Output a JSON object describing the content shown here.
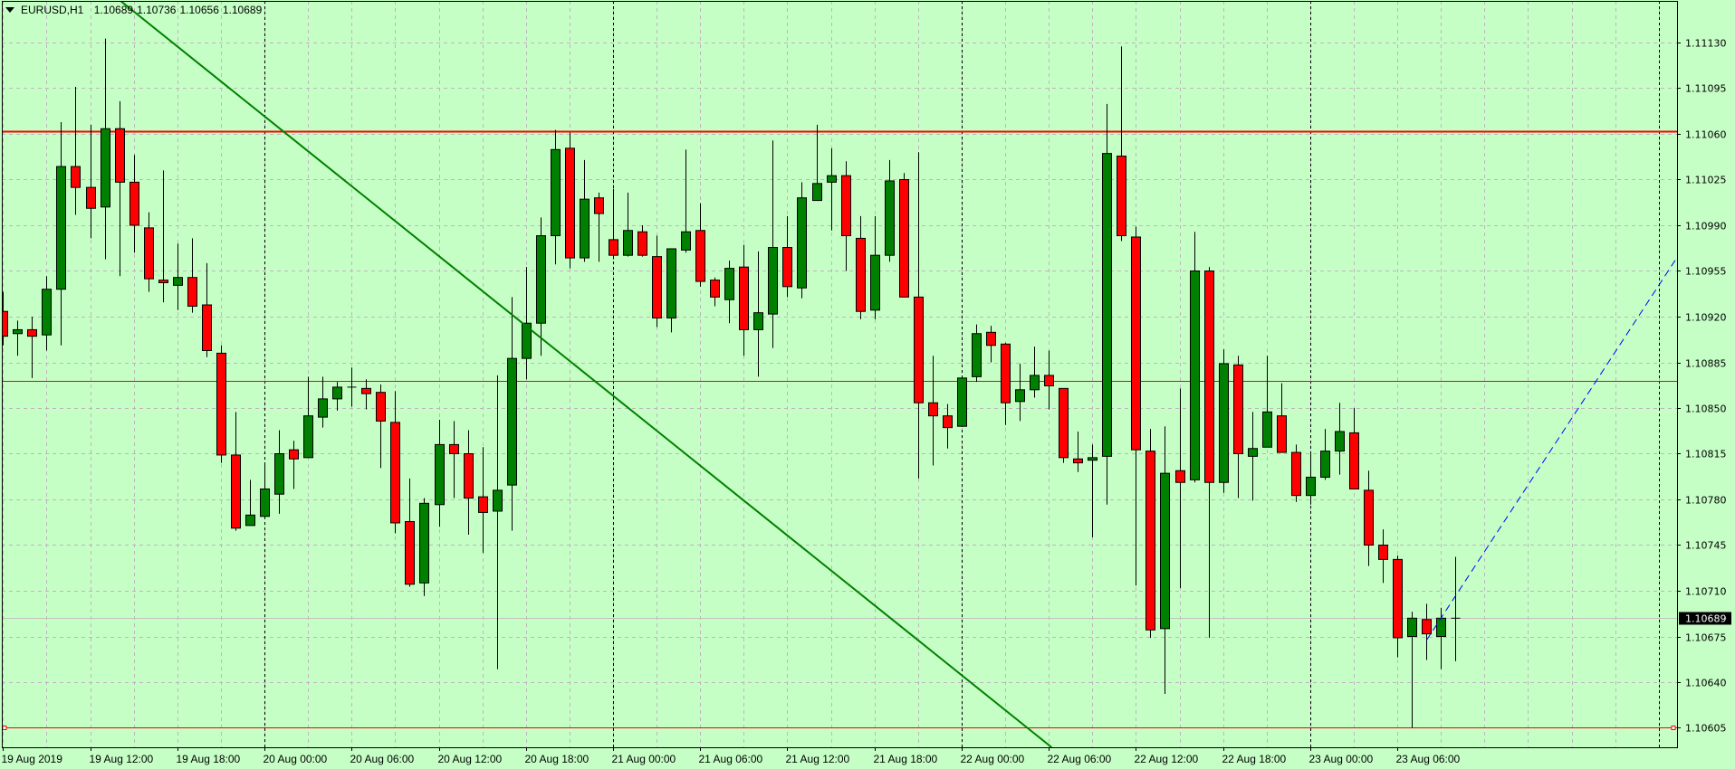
{
  "header": {
    "menu_icon": "triangle-down-icon",
    "symbol": "EURUSD,H1",
    "open": "1.10689",
    "high": "1.10736",
    "low": "1.10656",
    "close": "1.10689"
  },
  "colors": {
    "background": "#c6ffc6",
    "bull": "#008000",
    "bear": "#ff0000",
    "outline": "#000000",
    "grid": "#c0b4c0",
    "trend_green": "#008000",
    "trend_blue": "#0000ff",
    "level": "#ff0000",
    "bid_line": "#c0c0c0"
  },
  "chart_data": {
    "type": "candlestick",
    "symbol": "EURUSD",
    "timeframe": "H1",
    "ylim": [
      1.1059,
      1.11162
    ],
    "grid": true,
    "y_ticks": [
      "1.11130",
      "1.11095",
      "1.11060",
      "1.11025",
      "1.10990",
      "1.10955",
      "1.10920",
      "1.10885",
      "1.10850",
      "1.10815",
      "1.10780",
      "1.10745",
      "1.10710",
      "1.10675",
      "1.10640",
      "1.10605"
    ],
    "current_price": "1.10689",
    "x_ticks": [
      {
        "label": "19 Aug 2019",
        "time": "2019.08.19 06:00"
      },
      {
        "label": "19 Aug 12:00",
        "time": "2019.08.19 12:00"
      },
      {
        "label": "19 Aug 18:00",
        "time": "2019.08.19 18:00"
      },
      {
        "label": "20 Aug 00:00",
        "time": "2019.08.20 00:00"
      },
      {
        "label": "20 Aug 06:00",
        "time": "2019.08.20 06:00"
      },
      {
        "label": "20 Aug 12:00",
        "time": "2019.08.20 12:00"
      },
      {
        "label": "20 Aug 18:00",
        "time": "2019.08.20 18:00"
      },
      {
        "label": "21 Aug 00:00",
        "time": "2019.08.21 00:00"
      },
      {
        "label": "21 Aug 06:00",
        "time": "2019.08.21 06:00"
      },
      {
        "label": "21 Aug 12:00",
        "time": "2019.08.21 12:00"
      },
      {
        "label": "21 Aug 18:00",
        "time": "2019.08.21 18:00"
      },
      {
        "label": "22 Aug 00:00",
        "time": "2019.08.22 00:00"
      },
      {
        "label": "22 Aug 06:00",
        "time": "2019.08.22 06:00"
      },
      {
        "label": "22 Aug 12:00",
        "time": "2019.08.22 12:00"
      },
      {
        "label": "22 Aug 18:00",
        "time": "2019.08.22 18:00"
      },
      {
        "label": "23 Aug 00:00",
        "time": "2019.08.23 00:00"
      },
      {
        "label": "23 Aug 06:00",
        "time": "2019.08.23 06:00"
      }
    ],
    "horizontal_lines": [
      {
        "price": 1.11062,
        "style": "thick"
      },
      {
        "price": 1.10871,
        "style": "thin"
      },
      {
        "price": 1.10605,
        "style": "thin-marked",
        "label": "1.10605"
      }
    ],
    "trendlines": [
      {
        "color": "green",
        "p1": {
          "time": "2019.08.20 06:00",
          "price": 1.1102
        },
        "p2": {
          "time": "2019.08.21 07:00",
          "price": 1.10797
        },
        "style": "solid"
      },
      {
        "color": "blue",
        "p1": {
          "time": "2019.08.23 08:00",
          "price": 1.10672
        },
        "p2": {
          "time": "2019.08.23 10:00",
          "price": 1.10706
        },
        "style": "dashed-ray"
      }
    ],
    "bars": [
      {
        "t": "2019.08.19 06:00",
        "o": 1.10924,
        "h": 1.10939,
        "l": 1.10898,
        "c": 1.10905
      },
      {
        "t": "2019.08.19 07:00",
        "o": 1.10907,
        "h": 1.10917,
        "l": 1.1089,
        "c": 1.1091
      },
      {
        "t": "2019.08.19 08:00",
        "o": 1.1091,
        "h": 1.1092,
        "l": 1.10873,
        "c": 1.10905
      },
      {
        "t": "2019.08.19 09:00",
        "o": 1.10906,
        "h": 1.10951,
        "l": 1.10894,
        "c": 1.10941
      },
      {
        "t": "2019.08.19 10:00",
        "o": 1.10941,
        "h": 1.11069,
        "l": 1.10898,
        "c": 1.11035
      },
      {
        "t": "2019.08.19 11:00",
        "o": 1.11035,
        "h": 1.11096,
        "l": 1.10998,
        "c": 1.11019
      },
      {
        "t": "2019.08.19 12:00",
        "o": 1.11019,
        "h": 1.11067,
        "l": 1.1098,
        "c": 1.11003
      },
      {
        "t": "2019.08.19 13:00",
        "o": 1.11004,
        "h": 1.11133,
        "l": 1.10964,
        "c": 1.11064
      },
      {
        "t": "2019.08.19 14:00",
        "o": 1.11064,
        "h": 1.11085,
        "l": 1.10951,
        "c": 1.11023
      },
      {
        "t": "2019.08.19 15:00",
        "o": 1.11023,
        "h": 1.11044,
        "l": 1.10969,
        "c": 1.1099
      },
      {
        "t": "2019.08.19 16:00",
        "o": 1.10988,
        "h": 1.11,
        "l": 1.10939,
        "c": 1.10949
      },
      {
        "t": "2019.08.19 17:00",
        "o": 1.10948,
        "h": 1.11032,
        "l": 1.10931,
        "c": 1.10946
      },
      {
        "t": "2019.08.19 18:00",
        "o": 1.10944,
        "h": 1.10976,
        "l": 1.10925,
        "c": 1.1095
      },
      {
        "t": "2019.08.19 19:00",
        "o": 1.1095,
        "h": 1.1098,
        "l": 1.10923,
        "c": 1.10928
      },
      {
        "t": "2019.08.19 20:00",
        "o": 1.10929,
        "h": 1.10961,
        "l": 1.10889,
        "c": 1.10894
      },
      {
        "t": "2019.08.19 21:00",
        "o": 1.10892,
        "h": 1.10898,
        "l": 1.10808,
        "c": 1.10814
      },
      {
        "t": "2019.08.19 22:00",
        "o": 1.10814,
        "h": 1.10847,
        "l": 1.10756,
        "c": 1.10758
      },
      {
        "t": "2019.08.19 23:00",
        "o": 1.1076,
        "h": 1.10795,
        "l": 1.1076,
        "c": 1.10768
      },
      {
        "t": "2019.08.20 00:00",
        "o": 1.10767,
        "h": 1.10808,
        "l": 1.10767,
        "c": 1.10788
      },
      {
        "t": "2019.08.20 01:00",
        "o": 1.10784,
        "h": 1.10833,
        "l": 1.10769,
        "c": 1.10815
      },
      {
        "t": "2019.08.20 02:00",
        "o": 1.10818,
        "h": 1.10825,
        "l": 1.10788,
        "c": 1.10811
      },
      {
        "t": "2019.08.20 03:00",
        "o": 1.10812,
        "h": 1.10874,
        "l": 1.10812,
        "c": 1.10844
      },
      {
        "t": "2019.08.20 04:00",
        "o": 1.10843,
        "h": 1.10874,
        "l": 1.10835,
        "c": 1.10857
      },
      {
        "t": "2019.08.20 05:00",
        "o": 1.10857,
        "h": 1.1087,
        "l": 1.10848,
        "c": 1.10866
      },
      {
        "t": "2019.08.20 06:00",
        "o": 1.10866,
        "h": 1.10881,
        "l": 1.10851,
        "c": 1.10866
      },
      {
        "t": "2019.08.20 07:00",
        "o": 1.10865,
        "h": 1.10872,
        "l": 1.10849,
        "c": 1.10861
      },
      {
        "t": "2019.08.20 08:00",
        "o": 1.10862,
        "h": 1.10868,
        "l": 1.10804,
        "c": 1.1084
      },
      {
        "t": "2019.08.20 09:00",
        "o": 1.10839,
        "h": 1.10863,
        "l": 1.10754,
        "c": 1.10762
      },
      {
        "t": "2019.08.20 10:00",
        "o": 1.10763,
        "h": 1.10796,
        "l": 1.10713,
        "c": 1.10715
      },
      {
        "t": "2019.08.20 11:00",
        "o": 1.10716,
        "h": 1.10781,
        "l": 1.10706,
        "c": 1.10777
      },
      {
        "t": "2019.08.20 12:00",
        "o": 1.10776,
        "h": 1.10841,
        "l": 1.10759,
        "c": 1.10822
      },
      {
        "t": "2019.08.20 13:00",
        "o": 1.10822,
        "h": 1.1084,
        "l": 1.10781,
        "c": 1.10815
      },
      {
        "t": "2019.08.20 14:00",
        "o": 1.10815,
        "h": 1.10833,
        "l": 1.10753,
        "c": 1.10781
      },
      {
        "t": "2019.08.20 15:00",
        "o": 1.10782,
        "h": 1.1082,
        "l": 1.10739,
        "c": 1.1077
      },
      {
        "t": "2019.08.20 16:00",
        "o": 1.10771,
        "h": 1.10875,
        "l": 1.1065,
        "c": 1.10787
      },
      {
        "t": "2019.08.20 17:00",
        "o": 1.10791,
        "h": 1.10935,
        "l": 1.10756,
        "c": 1.10888
      },
      {
        "t": "2019.08.20 18:00",
        "o": 1.10888,
        "h": 1.10958,
        "l": 1.10872,
        "c": 1.10915
      },
      {
        "t": "2019.08.20 19:00",
        "o": 1.10915,
        "h": 1.10996,
        "l": 1.1089,
        "c": 1.10982
      },
      {
        "t": "2019.08.20 20:00",
        "o": 1.10982,
        "h": 1.11063,
        "l": 1.1096,
        "c": 1.11048
      },
      {
        "t": "2019.08.20 21:00",
        "o": 1.11049,
        "h": 1.11061,
        "l": 1.10957,
        "c": 1.10965
      },
      {
        "t": "2019.08.20 22:00",
        "o": 1.10965,
        "h": 1.1104,
        "l": 1.10962,
        "c": 1.1101
      },
      {
        "t": "2019.08.20 23:00",
        "o": 1.11011,
        "h": 1.11015,
        "l": 1.10962,
        "c": 1.10999
      },
      {
        "t": "2019.08.21 00:00",
        "o": 1.10979,
        "h": 1.11018,
        "l": 1.10964,
        "c": 1.10967
      },
      {
        "t": "2019.08.21 01:00",
        "o": 1.10967,
        "h": 1.11015,
        "l": 1.10966,
        "c": 1.10986
      },
      {
        "t": "2019.08.21 02:00",
        "o": 1.10985,
        "h": 1.1099,
        "l": 1.10966,
        "c": 1.10967
      },
      {
        "t": "2019.08.21 03:00",
        "o": 1.10966,
        "h": 1.10982,
        "l": 1.10912,
        "c": 1.10919
      },
      {
        "t": "2019.08.21 04:00",
        "o": 1.10919,
        "h": 1.10972,
        "l": 1.10908,
        "c": 1.10972
      },
      {
        "t": "2019.08.21 05:00",
        "o": 1.10971,
        "h": 1.11048,
        "l": 1.10969,
        "c": 1.10985
      },
      {
        "t": "2019.08.21 06:00",
        "o": 1.10986,
        "h": 1.11007,
        "l": 1.10943,
        "c": 1.10947
      },
      {
        "t": "2019.08.21 07:00",
        "o": 1.10948,
        "h": 1.1095,
        "l": 1.10928,
        "c": 1.10935
      },
      {
        "t": "2019.08.21 08:00",
        "o": 1.10933,
        "h": 1.10963,
        "l": 1.10915,
        "c": 1.10957
      },
      {
        "t": "2019.08.21 09:00",
        "o": 1.10958,
        "h": 1.10975,
        "l": 1.1089,
        "c": 1.1091
      },
      {
        "t": "2019.08.21 10:00",
        "o": 1.1091,
        "h": 1.1097,
        "l": 1.10874,
        "c": 1.10923
      },
      {
        "t": "2019.08.21 11:00",
        "o": 1.10922,
        "h": 1.11055,
        "l": 1.10896,
        "c": 1.10973
      },
      {
        "t": "2019.08.21 12:00",
        "o": 1.10973,
        "h": 1.10997,
        "l": 1.10935,
        "c": 1.10943
      },
      {
        "t": "2019.08.21 13:00",
        "o": 1.10942,
        "h": 1.11023,
        "l": 1.10934,
        "c": 1.11011
      },
      {
        "t": "2019.08.21 14:00",
        "o": 1.11009,
        "h": 1.11067,
        "l": 1.11009,
        "c": 1.11022
      },
      {
        "t": "2019.08.21 15:00",
        "o": 1.11023,
        "h": 1.11049,
        "l": 1.10986,
        "c": 1.11028
      },
      {
        "t": "2019.08.21 16:00",
        "o": 1.11028,
        "h": 1.11039,
        "l": 1.10955,
        "c": 1.10982
      },
      {
        "t": "2019.08.21 17:00",
        "o": 1.1098,
        "h": 1.10997,
        "l": 1.10918,
        "c": 1.10924
      },
      {
        "t": "2019.08.21 18:00",
        "o": 1.10925,
        "h": 1.10997,
        "l": 1.10918,
        "c": 1.10967
      },
      {
        "t": "2019.08.21 19:00",
        "o": 1.10967,
        "h": 1.1104,
        "l": 1.10962,
        "c": 1.11024
      },
      {
        "t": "2019.08.21 20:00",
        "o": 1.11025,
        "h": 1.1103,
        "l": 1.10935,
        "c": 1.10935
      },
      {
        "t": "2019.08.21 21:00",
        "o": 1.10935,
        "h": 1.11046,
        "l": 1.10796,
        "c": 1.10854
      },
      {
        "t": "2019.08.21 22:00",
        "o": 1.10854,
        "h": 1.1089,
        "l": 1.10806,
        "c": 1.10844
      },
      {
        "t": "2019.08.21 23:00",
        "o": 1.10844,
        "h": 1.10853,
        "l": 1.10819,
        "c": 1.10835
      },
      {
        "t": "2019.08.22 00:00",
        "o": 1.10836,
        "h": 1.10873,
        "l": 1.10836,
        "c": 1.10873
      },
      {
        "t": "2019.08.22 01:00",
        "o": 1.10874,
        "h": 1.10914,
        "l": 1.1087,
        "c": 1.10907
      },
      {
        "t": "2019.08.22 02:00",
        "o": 1.10908,
        "h": 1.10913,
        "l": 1.10885,
        "c": 1.10898
      },
      {
        "t": "2019.08.22 03:00",
        "o": 1.10899,
        "h": 1.109,
        "l": 1.10837,
        "c": 1.10854
      },
      {
        "t": "2019.08.22 04:00",
        "o": 1.10855,
        "h": 1.10884,
        "l": 1.1084,
        "c": 1.10864
      },
      {
        "t": "2019.08.22 05:00",
        "o": 1.10864,
        "h": 1.10897,
        "l": 1.10858,
        "c": 1.10875
      },
      {
        "t": "2019.08.22 06:00",
        "o": 1.10875,
        "h": 1.10894,
        "l": 1.10849,
        "c": 1.10867
      },
      {
        "t": "2019.08.22 07:00",
        "o": 1.10865,
        "h": 1.10865,
        "l": 1.10808,
        "c": 1.10812
      },
      {
        "t": "2019.08.22 08:00",
        "o": 1.10811,
        "h": 1.10832,
        "l": 1.10801,
        "c": 1.10808
      },
      {
        "t": "2019.08.22 09:00",
        "o": 1.1081,
        "h": 1.10822,
        "l": 1.10751,
        "c": 1.10812
      },
      {
        "t": "2019.08.22 10:00",
        "o": 1.10813,
        "h": 1.11083,
        "l": 1.10776,
        "c": 1.11045
      },
      {
        "t": "2019.08.22 11:00",
        "o": 1.11043,
        "h": 1.11127,
        "l": 1.10978,
        "c": 1.10982
      },
      {
        "t": "2019.08.22 12:00",
        "o": 1.10981,
        "h": 1.10989,
        "l": 1.10714,
        "c": 1.10818
      },
      {
        "t": "2019.08.22 13:00",
        "o": 1.10817,
        "h": 1.10834,
        "l": 1.10674,
        "c": 1.1068
      },
      {
        "t": "2019.08.22 14:00",
        "o": 1.10681,
        "h": 1.10836,
        "l": 1.10631,
        "c": 1.108
      },
      {
        "t": "2019.08.22 15:00",
        "o": 1.10802,
        "h": 1.10865,
        "l": 1.10712,
        "c": 1.10793
      },
      {
        "t": "2019.08.22 16:00",
        "o": 1.10795,
        "h": 1.10985,
        "l": 1.10793,
        "c": 1.10955
      },
      {
        "t": "2019.08.22 17:00",
        "o": 1.10955,
        "h": 1.10958,
        "l": 1.10674,
        "c": 1.10793
      },
      {
        "t": "2019.08.22 18:00",
        "o": 1.10793,
        "h": 1.10895,
        "l": 1.10785,
        "c": 1.10884
      },
      {
        "t": "2019.08.22 19:00",
        "o": 1.10883,
        "h": 1.1089,
        "l": 1.10781,
        "c": 1.10815
      },
      {
        "t": "2019.08.22 20:00",
        "o": 1.10813,
        "h": 1.10847,
        "l": 1.10779,
        "c": 1.10819
      },
      {
        "t": "2019.08.22 21:00",
        "o": 1.1082,
        "h": 1.1089,
        "l": 1.1082,
        "c": 1.10847
      },
      {
        "t": "2019.08.22 22:00",
        "o": 1.10844,
        "h": 1.10869,
        "l": 1.10816,
        "c": 1.10816
      },
      {
        "t": "2019.08.22 23:00",
        "o": 1.10816,
        "h": 1.10822,
        "l": 1.10778,
        "c": 1.10783
      },
      {
        "t": "2019.08.23 00:00",
        "o": 1.10783,
        "h": 1.10816,
        "l": 1.10776,
        "c": 1.10797
      },
      {
        "t": "2019.08.23 01:00",
        "o": 1.10797,
        "h": 1.10834,
        "l": 1.10795,
        "c": 1.10817
      },
      {
        "t": "2019.08.23 02:00",
        "o": 1.10817,
        "h": 1.10854,
        "l": 1.10799,
        "c": 1.10832
      },
      {
        "t": "2019.08.23 03:00",
        "o": 1.10831,
        "h": 1.1085,
        "l": 1.10788,
        "c": 1.10788
      },
      {
        "t": "2019.08.23 04:00",
        "o": 1.10787,
        "h": 1.10802,
        "l": 1.10729,
        "c": 1.10745
      },
      {
        "t": "2019.08.23 05:00",
        "o": 1.10745,
        "h": 1.10757,
        "l": 1.10716,
        "c": 1.10734
      },
      {
        "t": "2019.08.23 06:00",
        "o": 1.10734,
        "h": 1.10737,
        "l": 1.10659,
        "c": 1.10674
      },
      {
        "t": "2019.08.23 07:00",
        "o": 1.10675,
        "h": 1.10694,
        "l": 1.10605,
        "c": 1.10689
      },
      {
        "t": "2019.08.23 08:00",
        "o": 1.10688,
        "h": 1.107,
        "l": 1.10657,
        "c": 1.10677
      },
      {
        "t": "2019.08.23 09:00",
        "o": 1.10675,
        "h": 1.10697,
        "l": 1.1065,
        "c": 1.10689
      },
      {
        "t": "2019.08.23 10:00",
        "o": 1.10689,
        "h": 1.10736,
        "l": 1.10656,
        "c": 1.10689
      }
    ]
  }
}
